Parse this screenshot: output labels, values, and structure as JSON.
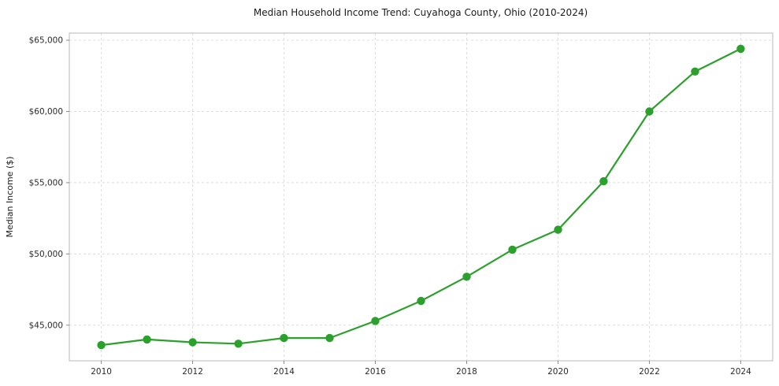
{
  "chart_data": {
    "type": "line",
    "title": "Median Household Income Trend: Cuyahoga County, Ohio (2010-2024)",
    "xlabel": "",
    "ylabel": "Median Income ($)",
    "series": [
      {
        "name": "Median Household Income",
        "x": [
          2010,
          2011,
          2012,
          2013,
          2014,
          2015,
          2016,
          2017,
          2018,
          2019,
          2020,
          2021,
          2022,
          2023,
          2024
        ],
        "values": [
          43600,
          44000,
          43800,
          43700,
          44100,
          44100,
          45300,
          46700,
          48400,
          50300,
          51700,
          55100,
          60000,
          62800,
          64400
        ]
      }
    ],
    "xlim": [
      2009.3,
      2024.7
    ],
    "ylim": [
      42500,
      65500
    ],
    "xticks": [
      2010,
      2012,
      2014,
      2016,
      2018,
      2020,
      2022,
      2024
    ],
    "xtick_labels": [
      "2010",
      "2012",
      "2014",
      "2016",
      "2018",
      "2020",
      "2022",
      "2024"
    ],
    "yticks": [
      45000,
      50000,
      55000,
      60000,
      65000
    ],
    "ytick_labels": [
      "$45,000",
      "$50,000",
      "$55,000",
      "$60,000",
      "$65,000"
    ],
    "grid": true,
    "grid_style": "dashed",
    "legend_position": "none",
    "colors": {
      "line": "#2ca02c",
      "marker": "#2ca02c",
      "grid": "#dcdcdc",
      "plot_border": "#b8b8b8",
      "background": "#ffffff"
    }
  }
}
